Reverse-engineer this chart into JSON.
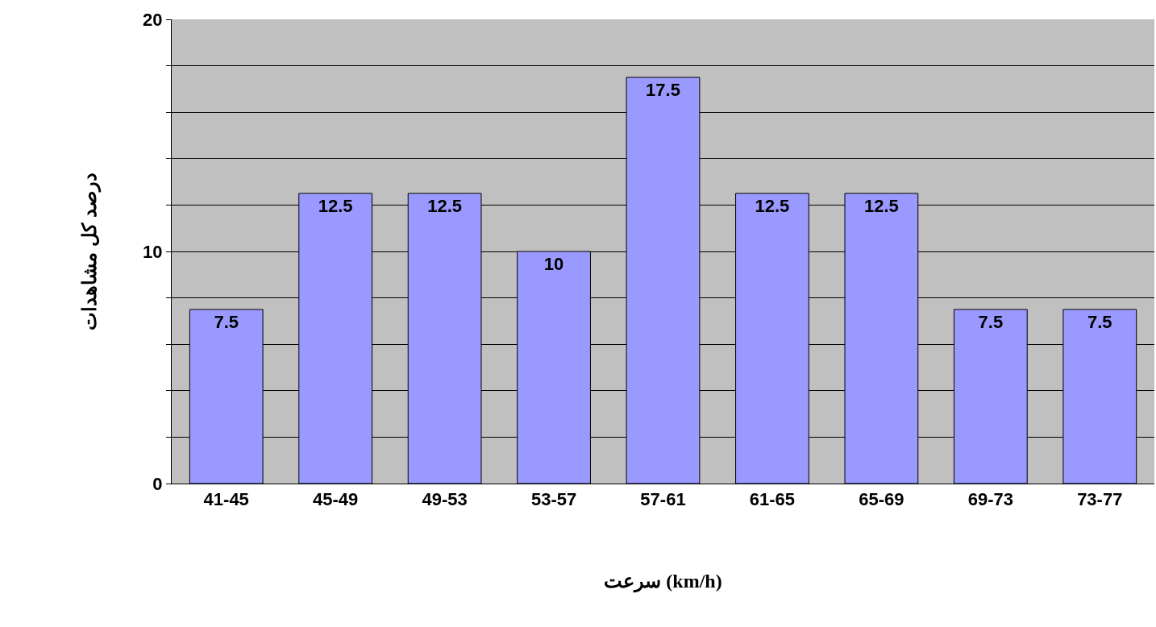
{
  "chart_data": {
    "type": "bar",
    "xlabel": "سرعت (km/h)",
    "ylabel": "درصد کل مشاهدات",
    "categories": [
      "41-45",
      "45-49",
      "49-53",
      "53-57",
      "57-61",
      "61-65",
      "65-69",
      "69-73",
      "73-77"
    ],
    "values": [
      7.5,
      12.5,
      12.5,
      10,
      17.5,
      12.5,
      12.5,
      7.5,
      7.5
    ],
    "color": "#9999ff",
    "ylim": [
      0,
      20
    ],
    "yticks": [
      0,
      {
        "value": 2,
        "label": null
      },
      {
        "value": 4,
        "label": null
      },
      {
        "value": 6,
        "label": null
      },
      {
        "value": 8,
        "label": null
      },
      10,
      {
        "value": 12,
        "label": null
      },
      {
        "value": 14,
        "label": null
      },
      {
        "value": 16,
        "label": null
      },
      {
        "value": 18,
        "label": null
      },
      20
    ],
    "grid": "y",
    "data_labels": true
  }
}
